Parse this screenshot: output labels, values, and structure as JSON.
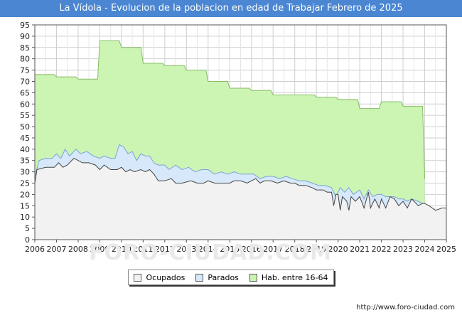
{
  "chart_data": {
    "type": "area",
    "title": "La Vídola - Evolucion de la poblacion en edad de Trabajar Febrero de 2025",
    "xlabel": "",
    "ylabel": "",
    "xlim": [
      2006,
      2025
    ],
    "ylim": [
      0,
      95
    ],
    "yticks": [
      0,
      5,
      10,
      15,
      20,
      25,
      30,
      35,
      40,
      45,
      50,
      55,
      60,
      65,
      70,
      75,
      80,
      85,
      90,
      95
    ],
    "xticks": [
      "2006",
      "2007",
      "2008",
      "2009",
      "2010",
      "2011",
      "2012",
      "2013",
      "2014",
      "2015",
      "2016",
      "2017",
      "2018",
      "2019",
      "2020",
      "2021",
      "2022",
      "2023",
      "2024",
      "2025"
    ],
    "grid": true,
    "legend_position": "bottom-center",
    "series": [
      {
        "name": "Ocupados",
        "color": "#f2f2f2",
        "points": [
          [
            2006.0,
            25
          ],
          [
            2006.1,
            31
          ],
          [
            2006.5,
            32
          ],
          [
            2006.9,
            32
          ],
          [
            2007.1,
            34
          ],
          [
            2007.3,
            32
          ],
          [
            2007.5,
            33
          ],
          [
            2007.8,
            36
          ],
          [
            2008.0,
            35
          ],
          [
            2008.2,
            34
          ],
          [
            2008.5,
            34
          ],
          [
            2008.8,
            33
          ],
          [
            2009.0,
            31
          ],
          [
            2009.2,
            33
          ],
          [
            2009.5,
            31
          ],
          [
            2009.8,
            31
          ],
          [
            2010.0,
            32
          ],
          [
            2010.2,
            30
          ],
          [
            2010.4,
            31
          ],
          [
            2010.6,
            30
          ],
          [
            2010.9,
            31
          ],
          [
            2011.1,
            30
          ],
          [
            2011.3,
            31
          ],
          [
            2011.5,
            29
          ],
          [
            2011.7,
            26
          ],
          [
            2012.0,
            26
          ],
          [
            2012.3,
            27
          ],
          [
            2012.5,
            25
          ],
          [
            2012.8,
            25
          ],
          [
            2013.2,
            26
          ],
          [
            2013.5,
            25
          ],
          [
            2013.8,
            25
          ],
          [
            2014.0,
            26
          ],
          [
            2014.3,
            25
          ],
          [
            2014.6,
            25
          ],
          [
            2015.0,
            25
          ],
          [
            2015.2,
            26
          ],
          [
            2015.5,
            26
          ],
          [
            2015.8,
            25
          ],
          [
            2016.0,
            26
          ],
          [
            2016.2,
            27
          ],
          [
            2016.4,
            25
          ],
          [
            2016.6,
            26
          ],
          [
            2016.9,
            26
          ],
          [
            2017.2,
            25
          ],
          [
            2017.5,
            26
          ],
          [
            2017.8,
            25
          ],
          [
            2018.0,
            25
          ],
          [
            2018.2,
            24
          ],
          [
            2018.5,
            24
          ],
          [
            2018.8,
            23
          ],
          [
            2019.0,
            22
          ],
          [
            2019.3,
            22
          ],
          [
            2019.5,
            21
          ],
          [
            2019.7,
            21
          ],
          [
            2019.8,
            15
          ],
          [
            2019.9,
            20
          ],
          [
            2020.0,
            20
          ],
          [
            2020.1,
            13
          ],
          [
            2020.2,
            19
          ],
          [
            2020.4,
            17
          ],
          [
            2020.5,
            13
          ],
          [
            2020.6,
            19
          ],
          [
            2020.8,
            17
          ],
          [
            2021.0,
            19
          ],
          [
            2021.2,
            14
          ],
          [
            2021.4,
            21
          ],
          [
            2021.5,
            14
          ],
          [
            2021.7,
            18
          ],
          [
            2021.9,
            14
          ],
          [
            2022.0,
            18
          ],
          [
            2022.2,
            14
          ],
          [
            2022.4,
            19
          ],
          [
            2022.6,
            18
          ],
          [
            2022.8,
            15
          ],
          [
            2023.0,
            17
          ],
          [
            2023.2,
            14
          ],
          [
            2023.4,
            18
          ],
          [
            2023.7,
            15
          ],
          [
            2023.9,
            16
          ],
          [
            2024.0,
            16
          ],
          [
            2024.2,
            15
          ],
          [
            2024.5,
            13
          ],
          [
            2024.8,
            14
          ],
          [
            2025.0,
            14
          ]
        ]
      },
      {
        "name": "Parados",
        "color": "#d6e8f9",
        "points": [
          [
            2006.0,
            28
          ],
          [
            2006.2,
            35
          ],
          [
            2006.5,
            36
          ],
          [
            2006.8,
            36
          ],
          [
            2007.0,
            38
          ],
          [
            2007.2,
            36
          ],
          [
            2007.4,
            40
          ],
          [
            2007.6,
            37
          ],
          [
            2007.9,
            40
          ],
          [
            2008.1,
            38
          ],
          [
            2008.4,
            39
          ],
          [
            2008.7,
            37
          ],
          [
            2009.0,
            36
          ],
          [
            2009.2,
            37
          ],
          [
            2009.5,
            36
          ],
          [
            2009.7,
            36
          ],
          [
            2009.9,
            42
          ],
          [
            2010.1,
            41
          ],
          [
            2010.3,
            38
          ],
          [
            2010.5,
            39
          ],
          [
            2010.7,
            35
          ],
          [
            2010.9,
            38
          ],
          [
            2011.1,
            37
          ],
          [
            2011.3,
            37
          ],
          [
            2011.5,
            34
          ],
          [
            2011.7,
            33
          ],
          [
            2012.0,
            33
          ],
          [
            2012.2,
            31
          ],
          [
            2012.5,
            33
          ],
          [
            2012.8,
            31
          ],
          [
            2013.1,
            32
          ],
          [
            2013.4,
            30
          ],
          [
            2013.7,
            31
          ],
          [
            2014.0,
            31
          ],
          [
            2014.3,
            29
          ],
          [
            2014.6,
            30
          ],
          [
            2014.9,
            29
          ],
          [
            2015.2,
            30
          ],
          [
            2015.5,
            29
          ],
          [
            2015.8,
            29
          ],
          [
            2016.1,
            29
          ],
          [
            2016.4,
            27
          ],
          [
            2016.7,
            28
          ],
          [
            2017.0,
            28
          ],
          [
            2017.3,
            27
          ],
          [
            2017.6,
            28
          ],
          [
            2017.9,
            27
          ],
          [
            2018.2,
            26
          ],
          [
            2018.5,
            26
          ],
          [
            2018.8,
            25
          ],
          [
            2019.1,
            24
          ],
          [
            2019.4,
            24
          ],
          [
            2019.7,
            23
          ],
          [
            2019.9,
            19
          ],
          [
            2020.1,
            23
          ],
          [
            2020.3,
            21
          ],
          [
            2020.5,
            23
          ],
          [
            2020.7,
            20
          ],
          [
            2021.0,
            22
          ],
          [
            2021.2,
            18
          ],
          [
            2021.4,
            22
          ],
          [
            2021.6,
            19
          ],
          [
            2021.8,
            20
          ],
          [
            2022.0,
            20
          ],
          [
            2022.2,
            19
          ],
          [
            2022.4,
            19
          ],
          [
            2022.6,
            19
          ],
          [
            2022.8,
            18
          ],
          [
            2023.0,
            18
          ],
          [
            2023.2,
            17
          ],
          [
            2023.4,
            18
          ],
          [
            2023.7,
            17
          ],
          [
            2023.9,
            16
          ],
          [
            2024.0,
            16
          ]
        ]
      },
      {
        "name": "Hab. entre 16-64",
        "color": "#ccf5b4",
        "points": [
          [
            2006.0,
            73
          ],
          [
            2006.9,
            73
          ],
          [
            2007.0,
            72
          ],
          [
            2007.9,
            72
          ],
          [
            2008.0,
            71
          ],
          [
            2008.9,
            71
          ],
          [
            2009.0,
            88
          ],
          [
            2009.9,
            88
          ],
          [
            2010.0,
            85
          ],
          [
            2010.9,
            85
          ],
          [
            2011.0,
            78
          ],
          [
            2011.9,
            78
          ],
          [
            2012.0,
            77
          ],
          [
            2012.9,
            77
          ],
          [
            2013.0,
            75
          ],
          [
            2013.9,
            75
          ],
          [
            2014.0,
            70
          ],
          [
            2014.9,
            70
          ],
          [
            2015.0,
            67
          ],
          [
            2015.9,
            67
          ],
          [
            2016.0,
            66
          ],
          [
            2016.9,
            66
          ],
          [
            2017.0,
            64
          ],
          [
            2017.9,
            64
          ],
          [
            2018.0,
            64
          ],
          [
            2018.9,
            64
          ],
          [
            2019.0,
            63
          ],
          [
            2019.9,
            63
          ],
          [
            2020.0,
            62
          ],
          [
            2020.9,
            62
          ],
          [
            2021.0,
            58
          ],
          [
            2021.9,
            58
          ],
          [
            2022.0,
            61
          ],
          [
            2022.9,
            61
          ],
          [
            2023.0,
            59
          ],
          [
            2023.9,
            59
          ],
          [
            2024.0,
            27
          ]
        ]
      }
    ]
  },
  "legend": {
    "items": [
      {
        "label": "Ocupados",
        "color": "#f2f2f2"
      },
      {
        "label": "Parados",
        "color": "#d6e8f9"
      },
      {
        "label": "Hab. entre 16-64",
        "color": "#ccf5b4"
      }
    ]
  },
  "footer": {
    "source": "http://www.foro-ciudad.com"
  },
  "watermark": "FORO-CIUDAD.COM"
}
